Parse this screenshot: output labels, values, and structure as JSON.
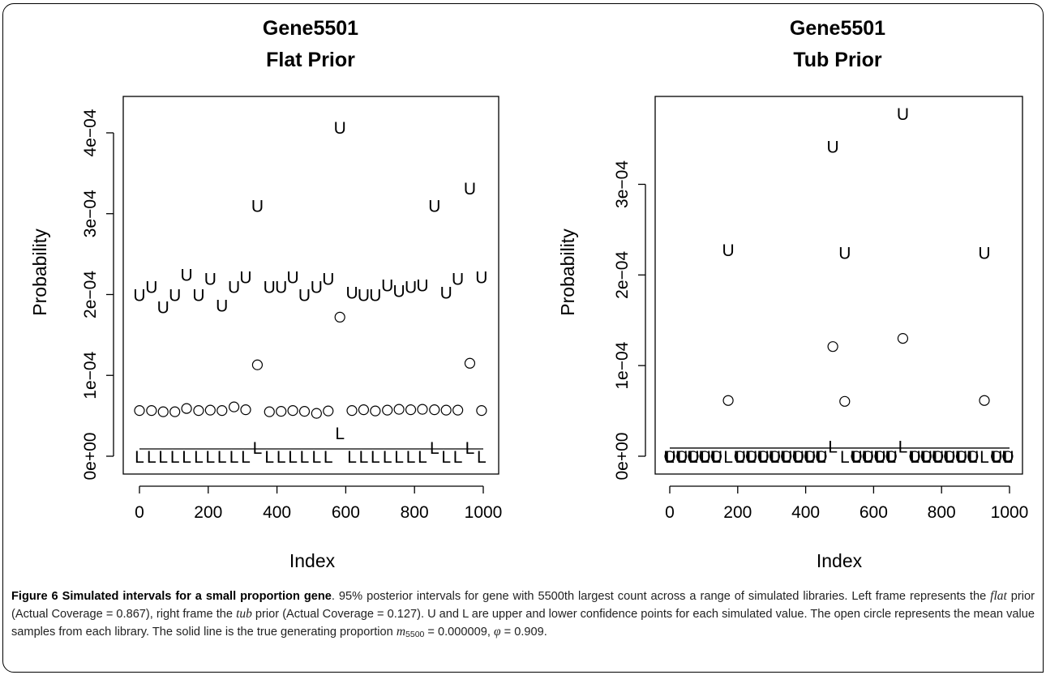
{
  "chart_data": [
    {
      "type": "scatter",
      "title_line1": "Gene5501",
      "title_line2": "Flat Prior",
      "xlabel": "Index",
      "ylabel": "Probability",
      "xlim": [
        0,
        1000
      ],
      "ylim": [
        0,
        0.00042
      ],
      "xticks": [
        0,
        200,
        400,
        600,
        800,
        1000
      ],
      "xtick_labels": [
        "0",
        "200",
        "400",
        "600",
        "800",
        "1000"
      ],
      "yticks": [
        0,
        0.0001,
        0.0002,
        0.0003,
        0.0004
      ],
      "ytick_labels": [
        "0e+00",
        "1e−04",
        "2e−04",
        "3e−04",
        "4e−04"
      ],
      "true_value": 9e-06,
      "x": [
        0,
        35,
        69,
        103,
        137,
        172,
        206,
        240,
        275,
        309,
        343,
        378,
        412,
        446,
        480,
        515,
        549,
        583,
        618,
        652,
        686,
        721,
        755,
        789,
        823,
        858,
        892,
        926,
        961,
        995
      ],
      "upper": [
        0.0002,
        0.00021,
        0.000185,
        0.0002,
        0.000225,
        0.0002,
        0.00022,
        0.000187,
        0.00021,
        0.000222,
        0.00031,
        0.00021,
        0.00021,
        0.000222,
        0.0002,
        0.00021,
        0.00022,
        0.000407,
        0.000203,
        0.0002,
        0.0002,
        0.000212,
        0.000205,
        0.00021,
        0.000212,
        0.00031,
        0.000203,
        0.00022,
        0.000332,
        0.000222
      ],
      "mean": [
        5.65e-05,
        5.65e-05,
        5.5e-05,
        5.5e-05,
        5.9e-05,
        5.65e-05,
        5.7e-05,
        5.65e-05,
        6.1e-05,
        5.75e-05,
        0.000113,
        5.5e-05,
        5.55e-05,
        5.65e-05,
        5.55e-05,
        5.3e-05,
        5.6e-05,
        0.000172,
        5.65e-05,
        5.75e-05,
        5.6e-05,
        5.7e-05,
        5.8e-05,
        5.75e-05,
        5.8e-05,
        5.75e-05,
        5.7e-05,
        5.7e-05,
        0.000115,
        5.65e-05
      ],
      "lower": [
        0,
        0,
        0,
        0,
        0,
        0,
        0,
        0,
        0,
        0,
        1.1e-05,
        0,
        0,
        0,
        0,
        0,
        0,
        2.9e-05,
        0,
        0,
        0,
        0,
        0,
        0,
        0,
        1.1e-05,
        0,
        0,
        1.1e-05,
        0
      ]
    },
    {
      "type": "scatter",
      "title_line1": "Gene5501",
      "title_line2": "Tub Prior",
      "xlabel": "Index",
      "ylabel": "Probability",
      "xlim": [
        0,
        1000
      ],
      "ylim": [
        0,
        0.00038
      ],
      "xticks": [
        0,
        200,
        400,
        600,
        800,
        1000
      ],
      "xtick_labels": [
        "0",
        "200",
        "400",
        "600",
        "800",
        "1000"
      ],
      "yticks": [
        0,
        0.0001,
        0.0002,
        0.0003
      ],
      "ytick_labels": [
        "0e+00",
        "1e−04",
        "2e−04",
        "3e−04"
      ],
      "true_value": 9e-06,
      "x": [
        0,
        35,
        69,
        103,
        137,
        172,
        206,
        240,
        275,
        309,
        343,
        378,
        412,
        446,
        480,
        515,
        549,
        583,
        618,
        652,
        686,
        721,
        755,
        789,
        823,
        858,
        892,
        926,
        961,
        995
      ],
      "upper": [
        0,
        0,
        0,
        0,
        0,
        0.000228,
        0,
        0,
        0,
        0,
        0,
        0,
        0,
        0,
        0.000342,
        0.000225,
        0,
        0,
        0,
        0,
        0.000378,
        0,
        0,
        0,
        0,
        0,
        0,
        0.000225,
        0,
        0
      ],
      "mean": [
        0,
        0,
        0,
        0,
        0,
        6.15e-05,
        0,
        0,
        0,
        0,
        0,
        0,
        0,
        0,
        0.000121,
        6.05e-05,
        0,
        0,
        0,
        0,
        0.00013,
        0,
        0,
        0,
        0,
        0,
        0,
        6.15e-05,
        0,
        0
      ],
      "lower": [
        0,
        0,
        0,
        0,
        0,
        0,
        0,
        0,
        0,
        0,
        0,
        0,
        0,
        0,
        1.1e-05,
        0,
        0,
        0,
        0,
        0,
        1.1e-05,
        0,
        0,
        0,
        0,
        0,
        0,
        0,
        0,
        0
      ]
    }
  ],
  "glyphs": {
    "upper": "U",
    "lower": "L"
  },
  "caption": {
    "label": "Figure 6 Simulated intervals for a small proportion gene",
    "p1": ". 95% posterior intervals for gene with 5500th largest count across a range of simulated libraries. Left frame represents the ",
    "flat": "flat",
    "p2": " prior (Actual Coverage = 0.867), right frame the ",
    "tub": "tub",
    "p3": " prior (Actual Coverage = 0.127). U and L are upper and lower confidence points for each simulated value. The open circle represents the mean value samples from each library. The solid line is the true generating proportion ",
    "m": "m",
    "m_sub": "5500",
    "p4": " = 0.000009, ",
    "phi": "φ",
    "p5": " = 0.909."
  },
  "colors": {
    "ink": "#000000",
    "caption_text": "#222222"
  }
}
